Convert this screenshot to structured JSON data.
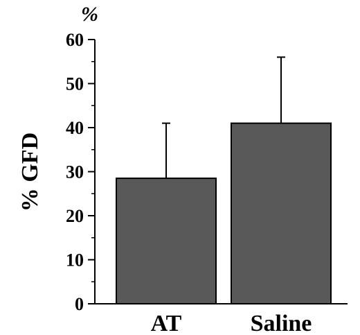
{
  "chart_data": {
    "type": "bar",
    "categories": [
      "AT",
      "Saline"
    ],
    "values": [
      28.5,
      41
    ],
    "error_bars_upper": [
      41,
      56
    ],
    "ylabel": "% GFD",
    "unit_label": "%",
    "ylim": [
      0,
      60
    ],
    "yticks": [
      "0",
      "10",
      "20",
      "30",
      "40",
      "50",
      "60"
    ],
    "bar_color": "#595959",
    "grid": false,
    "legend": "none"
  }
}
